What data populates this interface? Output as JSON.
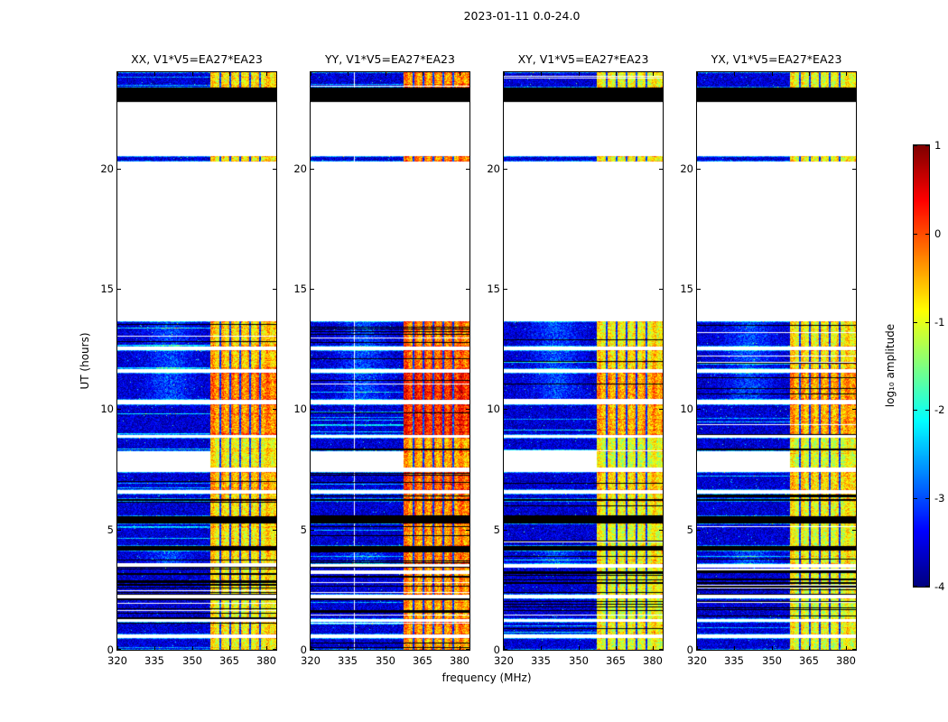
{
  "chart_data": {
    "type": "heatmap",
    "title": "2023-01-11 0.0-24.0",
    "xlabel": "frequency (MHz)",
    "ylabel": "UT (hours)",
    "xlim": [
      320,
      384
    ],
    "ylim": [
      0,
      24
    ],
    "xticks": [
      320,
      335,
      350,
      365,
      380
    ],
    "xtick_labels": [
      "320",
      "335",
      "350",
      "365",
      "380"
    ],
    "yticks": [
      0,
      5,
      10,
      15,
      20
    ],
    "ytick_labels": [
      "0",
      "5",
      "10",
      "15",
      "20"
    ],
    "panels": [
      {
        "label": "XX, V1*V5=EA27*EA23",
        "band_gain": 0.0,
        "seed": 101
      },
      {
        "label": "YY, V1*V5=EA27*EA23",
        "band_gain": 0.45,
        "seed": 202,
        "gap_col_mhz": 337.5
      },
      {
        "label": "XY, V1*V5=EA27*EA23",
        "band_gain": -0.15,
        "seed": 303
      },
      {
        "label": "YX, V1*V5=EA27*EA23",
        "band_gain": -0.15,
        "seed": 404
      }
    ],
    "colorbar": {
      "label": "log₁₀ amplitude",
      "vmin": -4,
      "vmax": 1,
      "ticks": [
        1,
        0,
        -1,
        -2,
        -3,
        -4
      ],
      "tick_labels": [
        "1",
        "0",
        "-1",
        "-2",
        "-3",
        "-4"
      ]
    },
    "rfi_band_mhz": [
      357.5,
      384
    ],
    "background_log_amp": -3.6,
    "flagged_channels_mhz": [
      361.5,
      365.5,
      369.5,
      373.5,
      377.5
    ],
    "segments": [
      {
        "t0": 0.0,
        "t1": 0.5,
        "kind": "data",
        "stripes": 0.08,
        "band": -0.85
      },
      {
        "t0": 0.5,
        "t1": 0.62,
        "kind": "gap"
      },
      {
        "t0": 0.62,
        "t1": 1.15,
        "kind": "data",
        "stripes": 0.1,
        "band": -0.75
      },
      {
        "t0": 1.15,
        "t1": 1.28,
        "kind": "gap"
      },
      {
        "t0": 1.28,
        "t1": 2.15,
        "kind": "data",
        "stripes": 0.32,
        "band": -0.85
      },
      {
        "t0": 2.15,
        "t1": 2.28,
        "kind": "gap"
      },
      {
        "t0": 2.28,
        "t1": 3.45,
        "kind": "data",
        "stripes": 0.55,
        "band": -0.75
      },
      {
        "t0": 3.45,
        "t1": 3.58,
        "kind": "gap"
      },
      {
        "t0": 3.58,
        "t1": 4.12,
        "kind": "data",
        "stripes": 0.12,
        "band": -0.7,
        "blob": true
      },
      {
        "t0": 4.12,
        "t1": 4.3,
        "kind": "black"
      },
      {
        "t0": 4.3,
        "t1": 5.25,
        "kind": "data",
        "stripes": 0.07,
        "band": -0.8
      },
      {
        "t0": 5.25,
        "t1": 5.55,
        "kind": "black"
      },
      {
        "t0": 5.55,
        "t1": 6.18,
        "kind": "data",
        "stripes": 0.1,
        "band": -0.7
      },
      {
        "t0": 6.18,
        "t1": 6.28,
        "kind": "black"
      },
      {
        "t0": 6.28,
        "t1": 6.5,
        "kind": "data",
        "stripes": 0.08,
        "band": -0.7
      },
      {
        "t0": 6.5,
        "t1": 6.62,
        "kind": "gap"
      },
      {
        "t0": 6.62,
        "t1": 7.4,
        "kind": "data",
        "stripes": 0.08,
        "band": -0.5
      },
      {
        "t0": 7.4,
        "t1": 7.58,
        "kind": "gap"
      },
      {
        "t0": 7.58,
        "t1": 8.25,
        "kind": "band_only",
        "band": -0.85
      },
      {
        "t0": 8.25,
        "t1": 8.8,
        "kind": "data",
        "stripes": 0.1,
        "band": -0.85
      },
      {
        "t0": 8.8,
        "t1": 8.92,
        "kind": "gap"
      },
      {
        "t0": 8.92,
        "t1": 10.2,
        "kind": "data",
        "stripes": 0.05,
        "band": -0.3
      },
      {
        "t0": 10.2,
        "t1": 10.38,
        "kind": "gap"
      },
      {
        "t0": 10.38,
        "t1": 11.5,
        "kind": "data",
        "stripes": 0.05,
        "band": -0.2,
        "blob": true
      },
      {
        "t0": 11.5,
        "t1": 11.65,
        "kind": "gap"
      },
      {
        "t0": 11.65,
        "t1": 12.45,
        "kind": "data",
        "stripes": 0.12,
        "band": -0.55,
        "blob": true
      },
      {
        "t0": 12.45,
        "t1": 12.6,
        "kind": "gap"
      },
      {
        "t0": 12.6,
        "t1": 13.65,
        "kind": "data",
        "stripes": 0.1,
        "band": -0.65,
        "blob": true
      },
      {
        "t0": 13.65,
        "t1": 20.3,
        "kind": "gap"
      },
      {
        "t0": 20.3,
        "t1": 20.52,
        "kind": "data",
        "stripes": 0.0,
        "band": -0.75
      },
      {
        "t0": 20.52,
        "t1": 22.75,
        "kind": "gap"
      },
      {
        "t0": 22.75,
        "t1": 23.35,
        "kind": "black"
      },
      {
        "t0": 23.35,
        "t1": 24.0,
        "kind": "data",
        "stripes": 0.06,
        "band": -0.75
      }
    ]
  }
}
